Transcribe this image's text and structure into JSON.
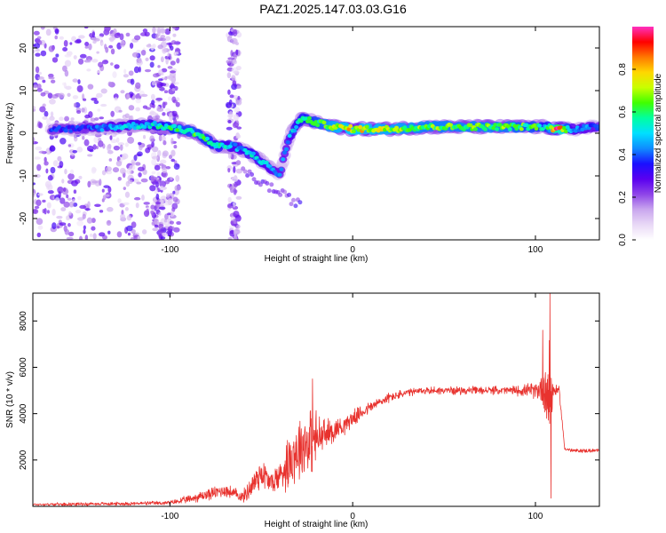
{
  "title": "PAZ1.2025.147.03.03.G16",
  "colors": {
    "snr_line": "#e8322e",
    "spectrogram_background": "#ffffff",
    "colormap": [
      "#ffffff",
      "#e9d9f6",
      "#c9a6ee",
      "#8e44e8",
      "#5a00f0",
      "#1a10ff",
      "#0f8cff",
      "#00e0ff",
      "#00ffa0",
      "#40ff00",
      "#c8ff00",
      "#ffd700",
      "#ff7800",
      "#ff0000",
      "#ff30c0"
    ]
  },
  "chart_data": [
    {
      "type": "heatmap",
      "xlabel": "Height of straight line (km)",
      "ylabel": "Frequency (Hz)",
      "xlim": [
        -175,
        135
      ],
      "ylim": [
        -25,
        25
      ],
      "xticks": [
        -100,
        0,
        100
      ],
      "yticks": [
        -20,
        -10,
        0,
        10,
        20
      ],
      "colorbar": {
        "label": "Normalized spectral amplitude",
        "range": [
          0,
          1
        ],
        "ticks": [
          0.0,
          0.2,
          0.4,
          0.6,
          0.8
        ]
      },
      "ridge": {
        "description_points": [
          {
            "x": -150,
            "freq": 1,
            "amplitude": 0.35
          },
          {
            "x": -130,
            "freq": 1.5,
            "amplitude": 0.45
          },
          {
            "x": -110,
            "freq": 2,
            "amplitude": 0.5
          },
          {
            "x": -95,
            "freq": 1,
            "amplitude": 0.6
          },
          {
            "x": -85,
            "freq": 0,
            "amplitude": 0.6
          },
          {
            "x": -75,
            "freq": -3,
            "amplitude": 0.55
          },
          {
            "x": -65,
            "freq": -3,
            "amplitude": 0.45
          },
          {
            "x": -55,
            "freq": -5,
            "amplitude": 0.5
          },
          {
            "x": -45,
            "freq": -8,
            "amplitude": 0.45
          },
          {
            "x": -40,
            "freq": -10,
            "amplitude": 0.4
          },
          {
            "x": -35,
            "freq": -1,
            "amplitude": 0.45
          },
          {
            "x": -28,
            "freq": 3.5,
            "amplitude": 0.55
          },
          {
            "x": -20,
            "freq": 2.5,
            "amplitude": 0.6
          },
          {
            "x": -10,
            "freq": 1.5,
            "amplitude": 0.7
          },
          {
            "x": 0,
            "freq": 1,
            "amplitude": 0.75
          },
          {
            "x": 20,
            "freq": 1,
            "amplitude": 0.7
          },
          {
            "x": 40,
            "freq": 1.5,
            "amplitude": 0.65
          },
          {
            "x": 60,
            "freq": 1.5,
            "amplitude": 0.65
          },
          {
            "x": 80,
            "freq": 1.5,
            "amplitude": 0.65
          },
          {
            "x": 100,
            "freq": 1.5,
            "amplitude": 0.6
          },
          {
            "x": 106,
            "freq": 1.5,
            "amplitude": 0.5
          },
          {
            "x": 112,
            "freq": 1,
            "amplitude": 0.95
          },
          {
            "x": 120,
            "freq": 1,
            "amplitude": 0.45
          },
          {
            "x": 135,
            "freq": 1.5,
            "amplitude": 0.4
          }
        ]
      }
    },
    {
      "type": "line",
      "xlabel": "Height of straight line (km)",
      "ylabel": "SNR (10 * v/v)",
      "xlim": [
        -175,
        135
      ],
      "ylim": [
        0,
        9200
      ],
      "xticks": [
        -100,
        0,
        100
      ],
      "yticks": [
        2000,
        4000,
        6000,
        8000
      ],
      "series": [
        {
          "envelope": {
            "x": [
              -175,
              -150,
              -120,
              -100,
              -90,
              -80,
              -70,
              -60,
              -55,
              -50,
              -45,
              -40,
              -35,
              -30,
              -25,
              -20,
              -15,
              -10,
              -5,
              0,
              10,
              20,
              30,
              40,
              50,
              60,
              70,
              80,
              90,
              100,
              104,
              106,
              108,
              110,
              113,
              116,
              120,
              130,
              135
            ],
            "mean": [
              80,
              100,
              120,
              150,
              300,
              500,
              700,
              400,
              900,
              1500,
              1000,
              1300,
              2000,
              2500,
              2800,
              2900,
              3100,
              3300,
              3500,
              3800,
              4300,
              4700,
              4900,
              5000,
              5000,
              5000,
              5000,
              5000,
              5000,
              5000,
              5100,
              5000,
              4900,
              5000,
              5000,
              2500,
              2400,
              2400,
              2400
            ],
            "noise": [
              60,
              80,
              90,
              110,
              200,
              300,
              350,
              300,
              700,
              900,
              600,
              800,
              1500,
              1700,
              1800,
              1500,
              800,
              600,
              500,
              400,
              300,
              250,
              200,
              200,
              200,
              200,
              200,
              200,
              250,
              400,
              900,
              2500,
              3000,
              300,
              200,
              100,
              100,
              100,
              100
            ]
          },
          "spikes": [
            {
              "x": -22,
              "y": 5500
            },
            {
              "x": 104,
              "y": 7600
            },
            {
              "x": 108,
              "y": 9200
            },
            {
              "x": 108.5,
              "y": 350
            }
          ]
        }
      ]
    }
  ]
}
